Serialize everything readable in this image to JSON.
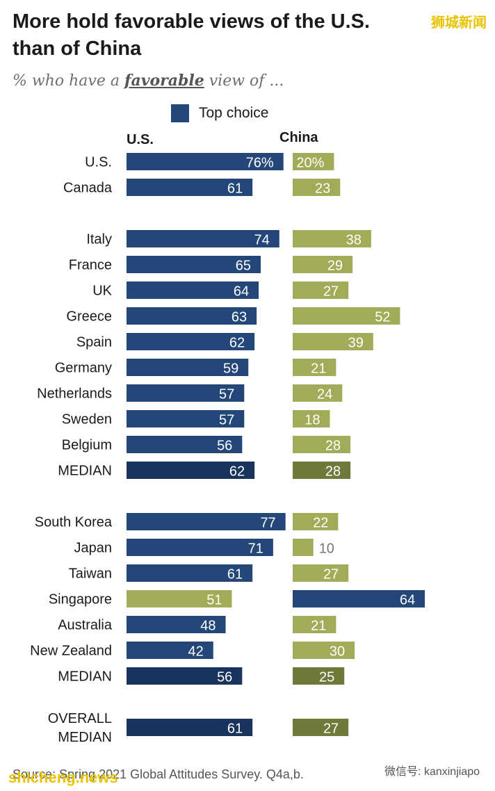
{
  "title_line1": "More hold favorable views of the U.S.",
  "title_line2": "than of China",
  "subtitle_prefix": "% who have a ",
  "subtitle_emph": "favorable",
  "subtitle_suffix": " view of ...",
  "legend_label": "Top choice",
  "col_us": "U.S.",
  "col_china": "China",
  "source": "Source: Spring 2021 Global Attitudes Survey. Q4a,b.",
  "watermark_top": "狮城新闻",
  "watermark_bottom": "shicheng.news",
  "wechat_label": "微信号: kanxinjiapo",
  "colors": {
    "us_top": "#24477a",
    "china_light": "#a2ab57",
    "us_median": "#18345c",
    "china_median": "#6d7a3a",
    "text_label": "#1a1a1a",
    "value_outside": "#777777"
  },
  "chart_data": {
    "type": "bar",
    "orientation": "horizontal",
    "series": [
      {
        "name": "U.S."
      },
      {
        "name": "China"
      }
    ],
    "groups": [
      {
        "rows": [
          {
            "label": "U.S.",
            "us": 76,
            "china": 20,
            "us_text": "76%",
            "china_text": "20%",
            "top": "us"
          },
          {
            "label": "Canada",
            "us": 61,
            "china": 23,
            "us_text": "61",
            "china_text": "23",
            "top": "us"
          }
        ]
      },
      {
        "rows": [
          {
            "label": "Italy",
            "us": 74,
            "china": 38,
            "us_text": "74",
            "china_text": "38",
            "top": "us"
          },
          {
            "label": "France",
            "us": 65,
            "china": 29,
            "us_text": "65",
            "china_text": "29",
            "top": "us"
          },
          {
            "label": "UK",
            "us": 64,
            "china": 27,
            "us_text": "64",
            "china_text": "27",
            "top": "us"
          },
          {
            "label": "Greece",
            "us": 63,
            "china": 52,
            "us_text": "63",
            "china_text": "52",
            "top": "us"
          },
          {
            "label": "Spain",
            "us": 62,
            "china": 39,
            "us_text": "62",
            "china_text": "39",
            "top": "us"
          },
          {
            "label": "Germany",
            "us": 59,
            "china": 21,
            "us_text": "59",
            "china_text": "21",
            "top": "us"
          },
          {
            "label": "Netherlands",
            "us": 57,
            "china": 24,
            "us_text": "57",
            "china_text": "24",
            "top": "us"
          },
          {
            "label": "Sweden",
            "us": 57,
            "china": 18,
            "us_text": "57",
            "china_text": "18",
            "top": "us"
          },
          {
            "label": "Belgium",
            "us": 56,
            "china": 28,
            "us_text": "56",
            "china_text": "28",
            "top": "us"
          },
          {
            "label": "MEDIAN",
            "us": 62,
            "china": 28,
            "us_text": "62",
            "china_text": "28",
            "top": "us",
            "median": true
          }
        ]
      },
      {
        "rows": [
          {
            "label": "South Korea",
            "us": 77,
            "china": 22,
            "us_text": "77",
            "china_text": "22",
            "top": "us"
          },
          {
            "label": "Japan",
            "us": 71,
            "china": 10,
            "us_text": "71",
            "china_text": "10",
            "top": "us"
          },
          {
            "label": "Taiwan",
            "us": 61,
            "china": 27,
            "us_text": "61",
            "china_text": "27",
            "top": "us"
          },
          {
            "label": "Singapore",
            "us": 51,
            "china": 64,
            "us_text": "51",
            "china_text": "64",
            "top": "china"
          },
          {
            "label": "Australia",
            "us": 48,
            "china": 21,
            "us_text": "48",
            "china_text": "21",
            "top": "us"
          },
          {
            "label": "New Zealand",
            "us": 42,
            "china": 30,
            "us_text": "42",
            "china_text": "30",
            "top": "us"
          },
          {
            "label": "MEDIAN",
            "us": 56,
            "china": 25,
            "us_text": "56",
            "china_text": "25",
            "top": "us",
            "median": true
          }
        ]
      },
      {
        "rows": [
          {
            "label": "OVERALL\nMEDIAN",
            "us": 61,
            "china": 27,
            "us_text": "61",
            "china_text": "27",
            "top": "us",
            "median": true
          }
        ]
      }
    ]
  }
}
